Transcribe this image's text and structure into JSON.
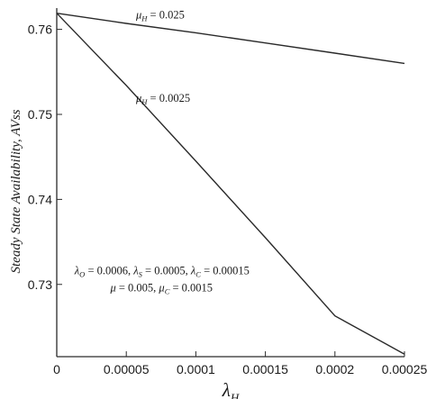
{
  "chart_data": {
    "type": "line",
    "title": "",
    "xlabel": "λ",
    "xlabel_sub": "H",
    "ylabel": "Steady State Availability, AVss",
    "xlim": [
      0,
      0.00025
    ],
    "ylim": [
      0.7215,
      0.7625
    ],
    "x_ticks": [
      0,
      5e-05,
      0.0001,
      0.00015,
      0.0002,
      0.00025
    ],
    "x_tick_labels": [
      "0",
      "0.00005",
      "0.0001",
      "0.00015",
      "0.0002",
      "0.00025"
    ],
    "y_ticks": [
      0.73,
      0.74,
      0.75,
      0.76
    ],
    "y_tick_labels": [
      "0.73",
      "0.74",
      "0.75",
      "0.76"
    ],
    "grid": false,
    "legend": "none",
    "line_color": "#2a2a2a",
    "series": [
      {
        "x": [
          0,
          5e-05,
          0.0001,
          0.00015,
          0.0002,
          0.00025
        ],
        "y": [
          0.7619,
          0.7607,
          0.7596,
          0.7584,
          0.7572,
          0.756
        ],
        "label_sym": "μ",
        "label_sub": "H",
        "label_val": " = 0.025",
        "label_at": [
          5.7e-05,
          0.7613
        ]
      },
      {
        "x": [
          0,
          5e-05,
          0.0001,
          0.00015,
          0.0002,
          0.00025
        ],
        "y": [
          0.7619,
          0.7534,
          0.7445,
          0.7355,
          0.7263,
          0.7218
        ],
        "label_sym": "μ",
        "label_sub": "H",
        "label_val": " = 0.0025",
        "label_at": [
          5.7e-05,
          0.7515
        ]
      }
    ],
    "annotations": [
      {
        "at": [
          1.28e-05,
          0.7312
        ],
        "parts": [
          [
            "λ",
            "O",
            " = 0.0006,   "
          ],
          [
            "λ",
            "S",
            " = 0.0005,   "
          ],
          [
            "λ",
            "C",
            " = 0.00015"
          ]
        ]
      },
      {
        "at": [
          3.85e-05,
          0.7292
        ],
        "parts": [
          [
            "μ",
            "",
            " = 0.005,   "
          ],
          [
            "μ",
            "C",
            " = 0.0015"
          ]
        ]
      }
    ]
  }
}
